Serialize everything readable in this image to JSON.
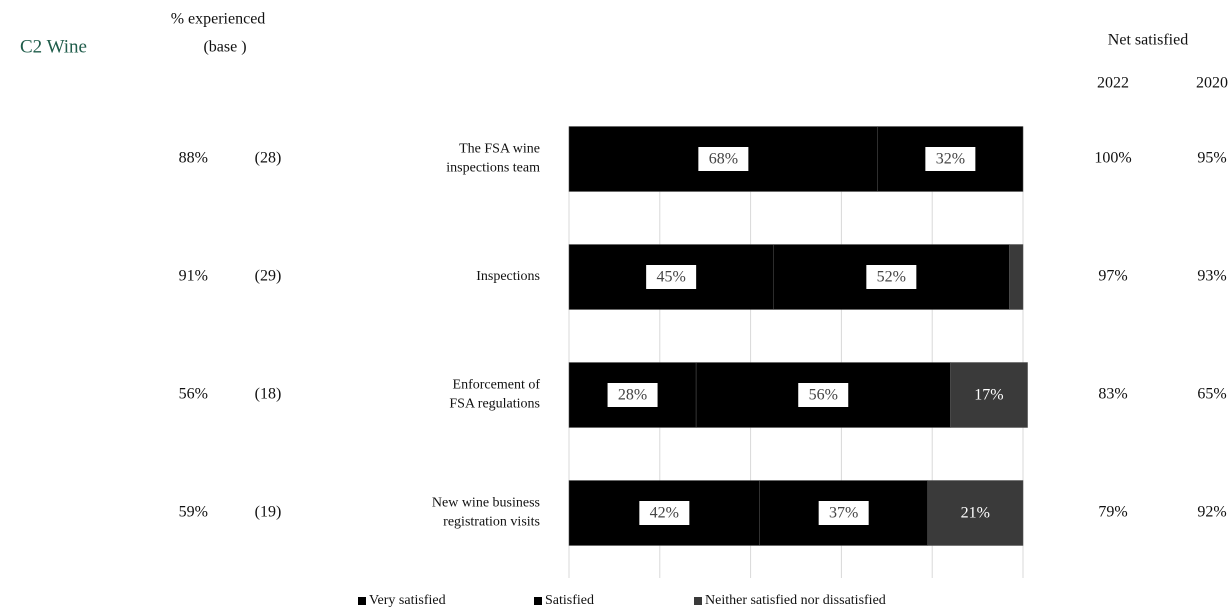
{
  "chart_data": {
    "type": "stacked-barh",
    "title": "C2 Wine",
    "experienced_header": "% experienced",
    "base_header": "(base )",
    "net_header": "Net satisfied",
    "net_years": [
      "2022",
      "2020"
    ],
    "categories": [
      [
        "The FSA wine",
        "inspections team"
      ],
      [
        "Inspections"
      ],
      [
        "Enforcement of",
        "FSA regulations"
      ],
      [
        "New wine business",
        "registration visits"
      ]
    ],
    "experienced": [
      "88%",
      "91%",
      "56%",
      "59%"
    ],
    "base": [
      "(28)",
      "(29)",
      "(18)",
      "(19)"
    ],
    "net_2022": [
      "100%",
      "97%",
      "83%",
      "79%"
    ],
    "net_2020": [
      "95%",
      "93%",
      "65%",
      "92%"
    ],
    "series": [
      {
        "name": "Very satisfied",
        "color": "#000000",
        "values": [
          68,
          45,
          28,
          42
        ],
        "value_labels": [
          "68%",
          "45%",
          "28%",
          "42%"
        ]
      },
      {
        "name": "Satisfied",
        "color": "#000000",
        "values": [
          32,
          52,
          56,
          37
        ],
        "value_labels": [
          "32%",
          "52%",
          "56%",
          "37%"
        ]
      },
      {
        "name": "Neither satisfied nor dissatisfied",
        "color": "#3a3a3a",
        "values": [
          0,
          3,
          17,
          21
        ],
        "value_labels": [
          null,
          null,
          "17%",
          "21%"
        ]
      }
    ],
    "xlim": [
      0,
      100
    ],
    "xticks": [
      0,
      20,
      40,
      60,
      80,
      100
    ],
    "grid": true
  }
}
